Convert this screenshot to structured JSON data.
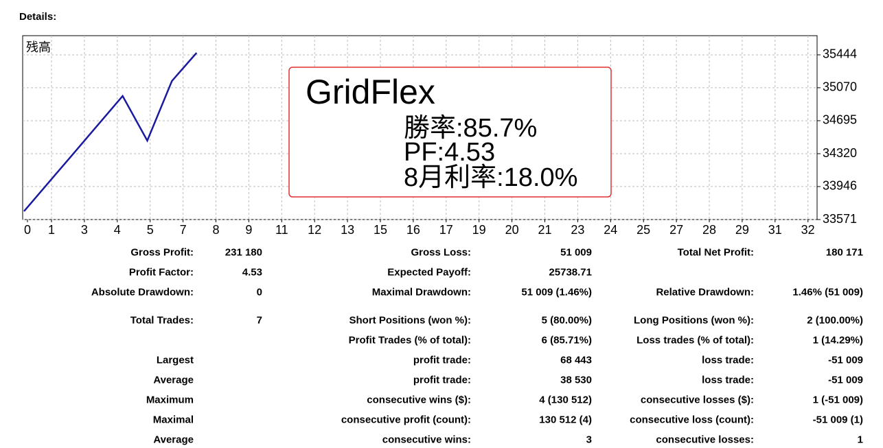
{
  "heading": "Details:",
  "chart_data": {
    "type": "line",
    "x": [
      0,
      1,
      2,
      3,
      4,
      5,
      6,
      7
    ],
    "series": [
      {
        "name": "残高",
        "color": "#1a1aa0",
        "values": [
          33665,
          33993,
          34320,
          34648,
          34976,
          34468,
          35147,
          35467
        ]
      }
    ],
    "xlim": [
      0,
      32
    ],
    "xticks": [
      0,
      1,
      3,
      4,
      5,
      7,
      8,
      9,
      11,
      12,
      13,
      15,
      16,
      17,
      19,
      20,
      21,
      23,
      24,
      25,
      27,
      28,
      29,
      31,
      32
    ],
    "ylim": [
      33571,
      35662
    ],
    "yticks": [
      33571,
      33946,
      34320,
      34695,
      35070,
      35444
    ],
    "grid": true
  },
  "overlay": {
    "title": "GridFlex",
    "lines": [
      "勝率:85.7%",
      "PF:4.53",
      "8月利率:18.0%"
    ]
  },
  "table": {
    "rows": [
      [
        "Gross Profit:",
        "231 180",
        "Gross Loss:",
        "51 009",
        "Total Net Profit:",
        "180 171"
      ],
      [
        "Profit Factor:",
        "4.53",
        "Expected Payoff:",
        "25738.71",
        null,
        null
      ],
      [
        "Absolute Drawdown:",
        "0",
        "Maximal Drawdown:",
        "51 009 (1.46%)",
        "Relative Drawdown:",
        "1.46% (51 009)"
      ],
      [
        "Total Trades:",
        "7",
        "Short Positions (won %):",
        "5 (80.00%)",
        "Long Positions (won %):",
        "2 (100.00%)"
      ],
      [
        null,
        null,
        "Profit Trades (% of total):",
        "6 (85.71%)",
        "Loss trades (% of total):",
        "1 (14.29%)"
      ],
      [
        "Largest",
        null,
        "profit trade:",
        "68 443",
        "loss trade:",
        "-51 009"
      ],
      [
        "Average",
        null,
        "profit trade:",
        "38 530",
        "loss trade:",
        "-51 009"
      ],
      [
        "Maximum",
        null,
        "consecutive wins ($):",
        "4 (130 512)",
        "consecutive losses ($):",
        "1 (-51 009)"
      ],
      [
        "Maximal",
        null,
        "consecutive profit (count):",
        "130 512 (4)",
        "consecutive loss (count):",
        "-51 009 (1)"
      ],
      [
        "Average",
        null,
        "consecutive wins:",
        "3",
        "consecutive losses:",
        "1"
      ]
    ]
  }
}
